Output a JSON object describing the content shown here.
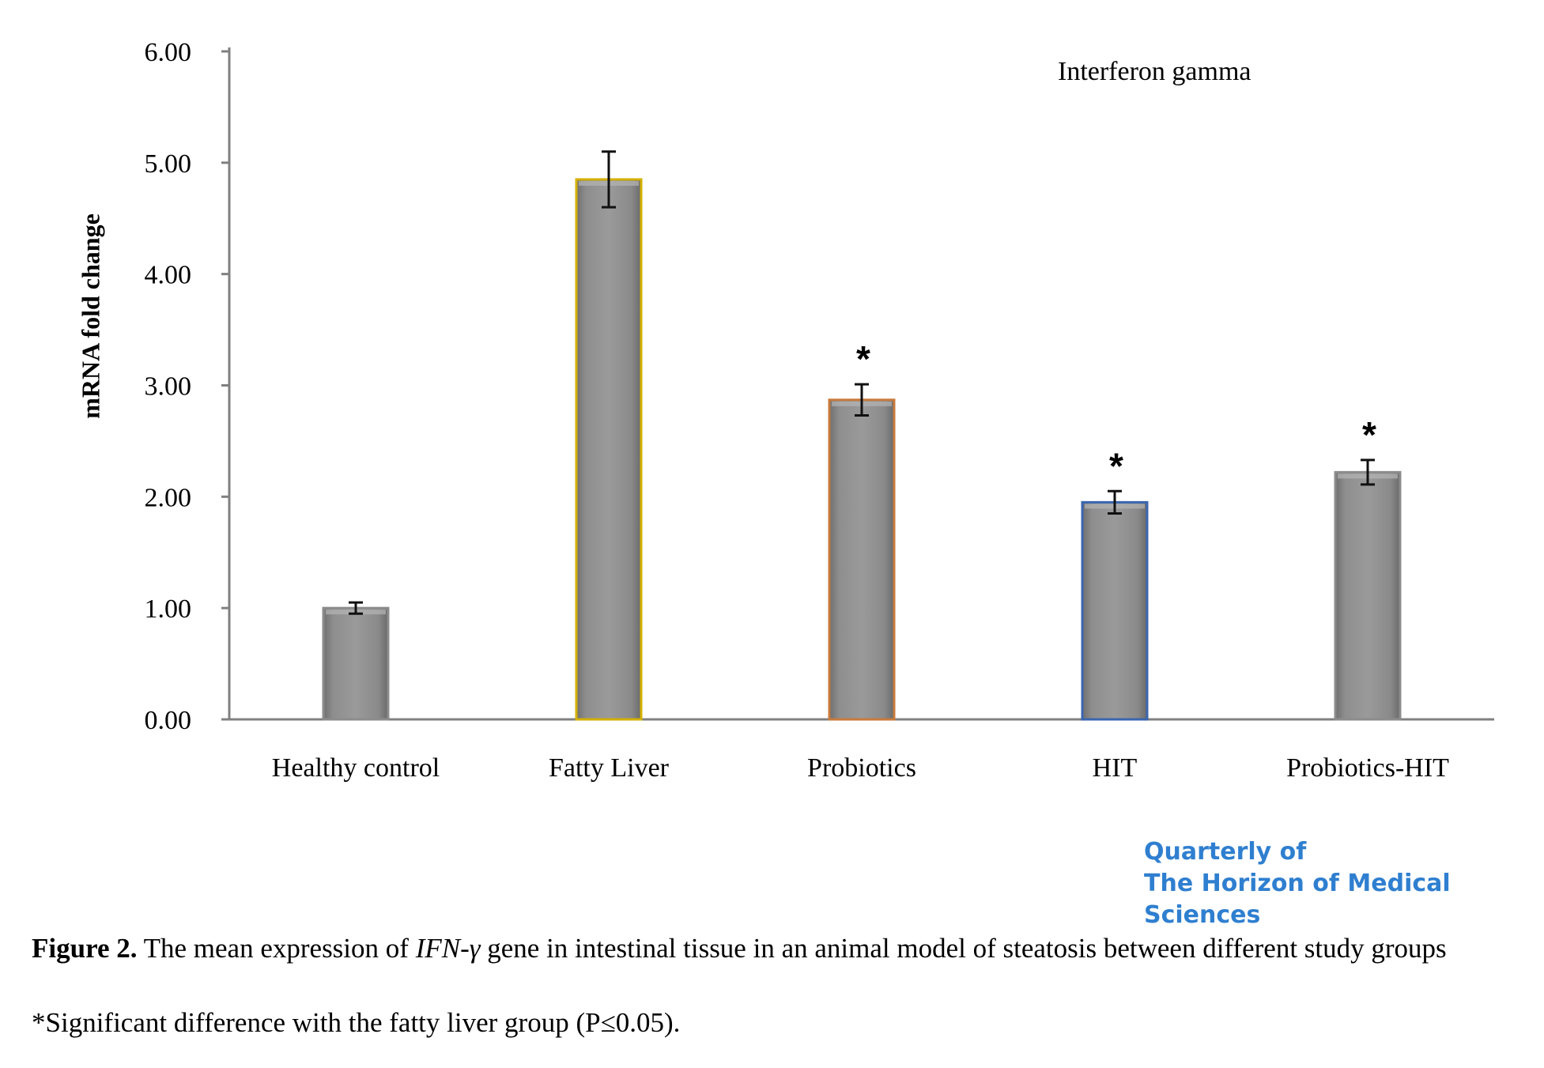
{
  "chart_data": {
    "type": "bar",
    "title": "Interferon gamma",
    "xlabel": "",
    "ylabel": "mRNA fold change",
    "ylim": [
      0,
      6
    ],
    "yticks": [
      "0.00",
      "1.00",
      "2.00",
      "3.00",
      "4.00",
      "5.00",
      "6.00"
    ],
    "categories": [
      "Healthy control",
      "Fatty Liver",
      "Probiotics",
      "HIT",
      "Probiotics-HIT"
    ],
    "values": [
      1.0,
      4.85,
      2.87,
      1.95,
      2.22
    ],
    "errors": [
      0.05,
      0.25,
      0.14,
      0.1,
      0.11
    ],
    "significant": [
      false,
      false,
      true,
      true,
      true
    ],
    "significance_marker": "*",
    "bar_color": "#8c8c8c",
    "border_colors": [
      "#8c8c8c",
      "#d4b000",
      "#c87a3c",
      "#3a66b0",
      "#8c8c8c"
    ],
    "grid": false,
    "legend": "none"
  },
  "watermark": {
    "line1": "Quarterly of",
    "line2": "The Horizon of Medical Sciences",
    "color": "#2f7fd0"
  },
  "caption": {
    "label": "Figure 2.",
    "text_before": " The mean expression of ",
    "gene": "IFN-γ",
    "text_after": " gene in intestinal tissue in an animal model of steatosis between different study groups"
  },
  "footnote": "*Significant difference with the fatty liver group (P≤0.05)."
}
